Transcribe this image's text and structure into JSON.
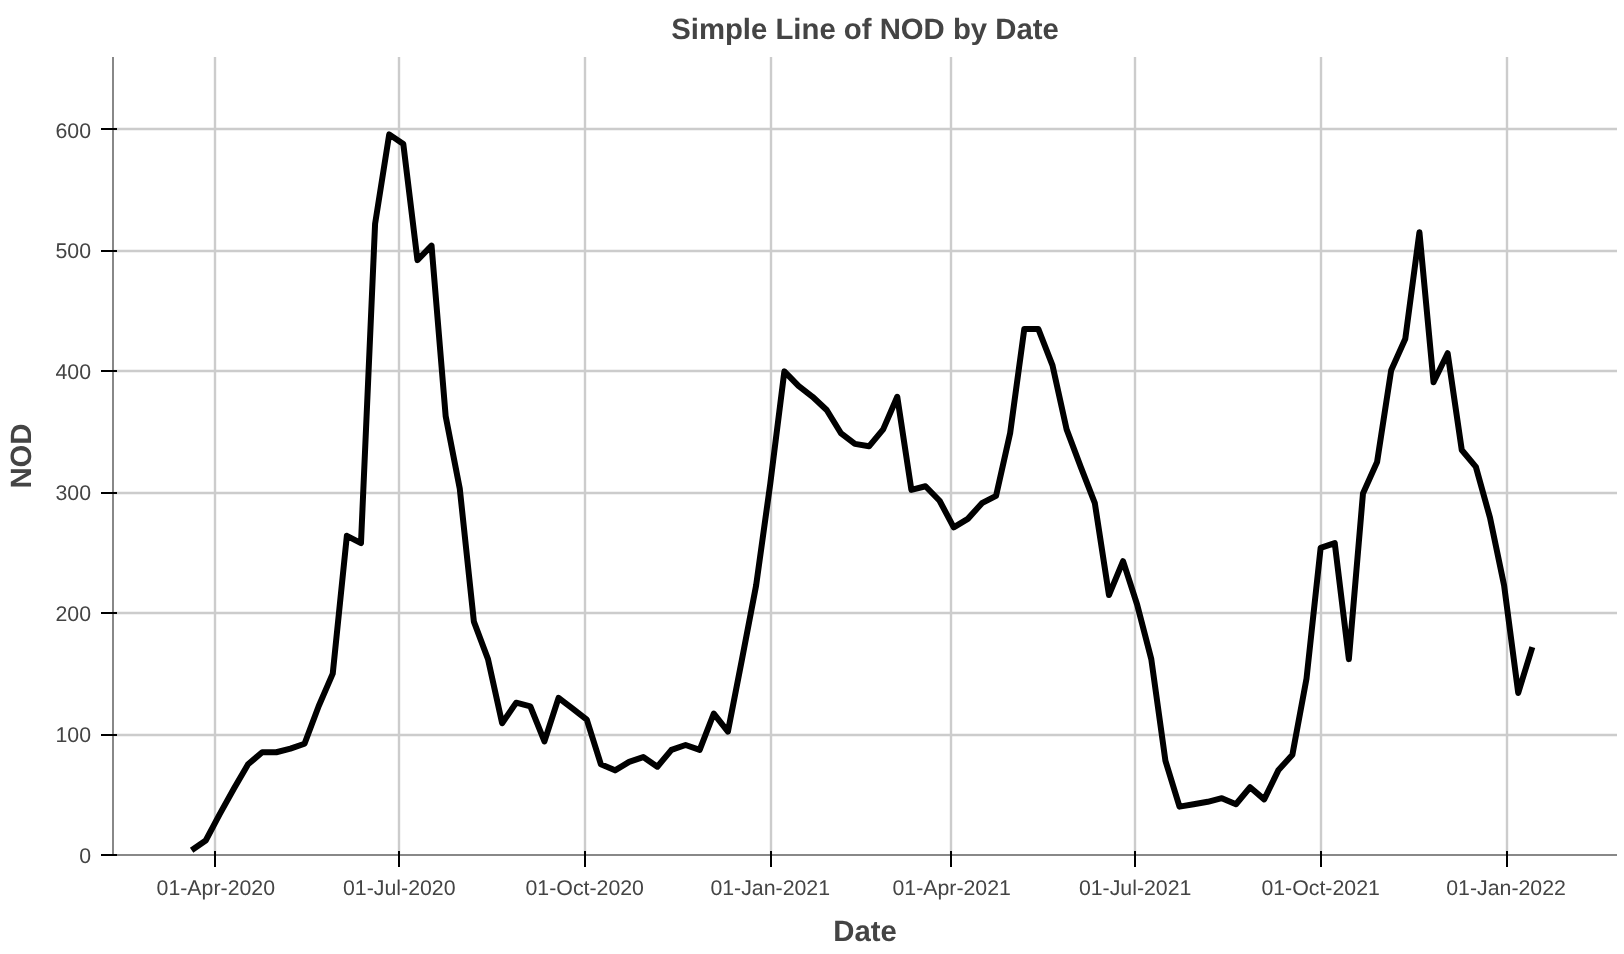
{
  "chart_data": {
    "type": "line",
    "title": "Simple Line of NOD by Date",
    "xlabel": "Date",
    "ylabel": "NOD",
    "x": [
      "2020-03-20",
      "2020-03-27",
      "2020-04-03",
      "2020-04-10",
      "2020-04-17",
      "2020-04-24",
      "2020-05-01",
      "2020-05-08",
      "2020-05-15",
      "2020-05-22",
      "2020-05-29",
      "2020-06-05",
      "2020-06-12",
      "2020-06-19",
      "2020-06-26",
      "2020-07-03",
      "2020-07-10",
      "2020-07-17",
      "2020-07-24",
      "2020-07-31",
      "2020-08-07",
      "2020-08-14",
      "2020-08-21",
      "2020-08-28",
      "2020-09-04",
      "2020-09-11",
      "2020-09-18",
      "2020-09-25",
      "2020-10-02",
      "2020-10-09",
      "2020-10-16",
      "2020-10-23",
      "2020-10-30",
      "2020-11-06",
      "2020-11-13",
      "2020-11-20",
      "2020-11-27",
      "2020-12-04",
      "2020-12-11",
      "2020-12-18",
      "2020-12-25",
      "2021-01-01",
      "2021-01-08",
      "2021-01-15",
      "2021-01-22",
      "2021-01-29",
      "2021-02-05",
      "2021-02-12",
      "2021-02-19",
      "2021-02-26",
      "2021-03-05",
      "2021-03-12",
      "2021-03-19",
      "2021-03-26",
      "2021-04-02",
      "2021-04-09",
      "2021-04-16",
      "2021-04-23",
      "2021-04-30",
      "2021-05-07",
      "2021-05-14",
      "2021-05-21",
      "2021-05-28",
      "2021-06-04",
      "2021-06-11",
      "2021-06-18",
      "2021-06-25",
      "2021-07-02",
      "2021-07-09",
      "2021-07-16",
      "2021-07-23",
      "2021-07-30",
      "2021-08-06",
      "2021-08-13",
      "2021-08-20",
      "2021-08-27",
      "2021-09-03",
      "2021-09-10",
      "2021-09-17",
      "2021-09-24",
      "2021-10-01",
      "2021-10-08",
      "2021-10-15",
      "2021-10-22",
      "2021-10-29",
      "2021-11-05",
      "2021-11-12",
      "2021-11-19",
      "2021-11-26",
      "2021-12-03",
      "2021-12-10",
      "2021-12-17",
      "2021-12-24",
      "2021-12-31",
      "2022-01-07",
      "2022-01-14"
    ],
    "series": [
      {
        "color": "#000000",
        "values": [
          4,
          12,
          34,
          55,
          75,
          85,
          85,
          88,
          92,
          123,
          150,
          264,
          258,
          522,
          596,
          588,
          492,
          504,
          363,
          303,
          193,
          162,
          109,
          126,
          123,
          94,
          130,
          121,
          112,
          75,
          70,
          77,
          81,
          73,
          87,
          91,
          87,
          117,
          102,
          162,
          223,
          307,
          400,
          388,
          379,
          368,
          349,
          340,
          338,
          352,
          379,
          302,
          305,
          293,
          271,
          278,
          291,
          297,
          349,
          435,
          435,
          405,
          352,
          321,
          291,
          215,
          243,
          207,
          162,
          78,
          40,
          42,
          44,
          47,
          42,
          56,
          46,
          70,
          83,
          146,
          254,
          258,
          162,
          299,
          325,
          401,
          427,
          515,
          391,
          415,
          335,
          321,
          279,
          223,
          134,
          172
        ]
      }
    ],
    "xlim": [
      "2020-02-10",
      "2022-02-25"
    ],
    "xticks": [
      {
        "value": "2020-04-01",
        "label": "01-Apr-2020"
      },
      {
        "value": "2020-07-01",
        "label": "01-Jul-2020"
      },
      {
        "value": "2020-10-01",
        "label": "01-Oct-2020"
      },
      {
        "value": "2021-01-01",
        "label": "01-Jan-2021"
      },
      {
        "value": "2021-04-01",
        "label": "01-Apr-2021"
      },
      {
        "value": "2021-07-01",
        "label": "01-Jul-2021"
      },
      {
        "value": "2021-10-01",
        "label": "01-Oct-2021"
      },
      {
        "value": "2022-01-01",
        "label": "01-Jan-2022"
      }
    ],
    "ylim": [
      0,
      660
    ],
    "yticks": [
      0,
      100,
      200,
      300,
      400,
      500,
      600
    ],
    "grid": true,
    "marker": "none",
    "line_style": "solid"
  }
}
